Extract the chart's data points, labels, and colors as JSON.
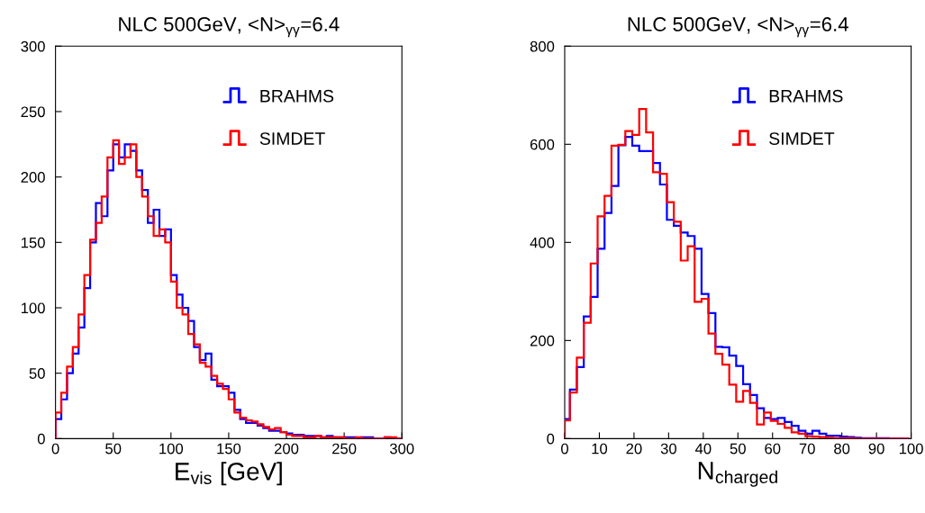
{
  "chart_data": [
    {
      "type": "histogram",
      "title": "NLC 500GeV, <N>$_{γγ}$=6.4",
      "xlabel": "E$_{vis}$ [GeV]",
      "bins": [
        0,
        5,
        10,
        15,
        20,
        25,
        30,
        35,
        40,
        45,
        50,
        55,
        60,
        65,
        70,
        75,
        80,
        85,
        90,
        95,
        100,
        105,
        110,
        115,
        120,
        125,
        130,
        135,
        140,
        145,
        150,
        155,
        160,
        165,
        170,
        175,
        180,
        185,
        190,
        195,
        200,
        205,
        210,
        215,
        220,
        225,
        230,
        235,
        240,
        245,
        250,
        255,
        260,
        265,
        270,
        275,
        280,
        285,
        290,
        295,
        300
      ],
      "series": [
        {
          "name": "BRAHMS",
          "color": "#0000ff",
          "values": [
            15,
            30,
            50,
            65,
            85,
            115,
            150,
            180,
            170,
            205,
            225,
            215,
            225,
            220,
            205,
            190,
            165,
            175,
            155,
            160,
            125,
            110,
            100,
            90,
            70,
            60,
            65,
            45,
            40,
            40,
            35,
            22,
            15,
            12,
            12,
            10,
            8,
            6,
            6,
            5,
            4,
            3,
            3,
            2,
            2,
            2,
            1,
            2,
            1,
            1,
            1,
            1,
            0,
            1,
            1,
            0,
            0,
            1,
            0,
            0
          ]
        },
        {
          "name": "SIMDET",
          "color": "#ff0000",
          "values": [
            20,
            35,
            55,
            70,
            95,
            125,
            152,
            165,
            185,
            215,
            228,
            210,
            215,
            225,
            200,
            185,
            170,
            155,
            160,
            150,
            120,
            100,
            95,
            80,
            72,
            58,
            55,
            48,
            42,
            38,
            30,
            20,
            16,
            14,
            13,
            11,
            9,
            7,
            8,
            5,
            3,
            2,
            2,
            1,
            1,
            2,
            1,
            1,
            1,
            1,
            0,
            0,
            1,
            0,
            0,
            0,
            0,
            1,
            1,
            0
          ]
        }
      ],
      "xlim": [
        0,
        300
      ],
      "ylim": [
        0,
        300
      ],
      "xticks": [
        0,
        50,
        100,
        150,
        200,
        250,
        300
      ],
      "yticks": [
        0,
        50,
        100,
        150,
        200,
        250,
        300
      ],
      "legend": "top right",
      "grid": false
    },
    {
      "type": "histogram",
      "title": "NLC 500GeV, <N>$_{γγ}$=6.4",
      "xlabel": "N$_{charged}$",
      "bins": [
        0,
        1.5,
        3.5,
        5.5,
        7.5,
        9.5,
        11.5,
        13.5,
        15.5,
        17.5,
        19.5,
        21.5,
        23.5,
        25.5,
        27.5,
        29.5,
        31.5,
        33.5,
        35.5,
        37.5,
        39.5,
        41.5,
        43.5,
        45.5,
        47.5,
        49.5,
        51.5,
        53.5,
        55.5,
        57.5,
        59.5,
        61.5,
        63.5,
        65.5,
        67.5,
        69.5,
        71.5,
        73.5,
        75.5,
        77.5,
        79.5,
        81.5,
        83.5,
        85.5,
        87.5,
        89.5,
        91.5,
        93.5,
        95.5,
        97.5,
        99.5
      ],
      "series": [
        {
          "name": "BRAHMS",
          "color": "#0000ff",
          "values": [
            40,
            100,
            146,
            249,
            289,
            387,
            460,
            515,
            598,
            615,
            597,
            586,
            586,
            562,
            518,
            446,
            434,
            420,
            413,
            387,
            295,
            256,
            187,
            186,
            169,
            148,
            111,
            89,
            62,
            42,
            40,
            42,
            34,
            26,
            16,
            10,
            16,
            10,
            6,
            6,
            4,
            3,
            2,
            1,
            1,
            1,
            1,
            0,
            0,
            0
          ]
        },
        {
          "name": "SIMDET",
          "color": "#ff0000",
          "values": [
            37,
            94,
            165,
            236,
            357,
            453,
            495,
            597,
            599,
            627,
            619,
            672,
            624,
            543,
            540,
            482,
            442,
            363,
            392,
            279,
            285,
            214,
            173,
            151,
            110,
            75,
            97,
            73,
            29,
            53,
            36,
            30,
            22,
            13,
            10,
            5,
            4,
            3,
            2,
            1,
            1,
            1,
            0,
            0,
            0,
            0,
            0,
            0,
            0,
            0
          ]
        }
      ],
      "xlim": [
        0,
        100
      ],
      "ylim": [
        0,
        800
      ],
      "xticks": [
        0,
        10,
        20,
        30,
        40,
        50,
        60,
        70,
        80,
        90,
        100
      ],
      "yticks": [
        0,
        200,
        400,
        600,
        800
      ],
      "legend": "top right",
      "grid": false
    }
  ]
}
